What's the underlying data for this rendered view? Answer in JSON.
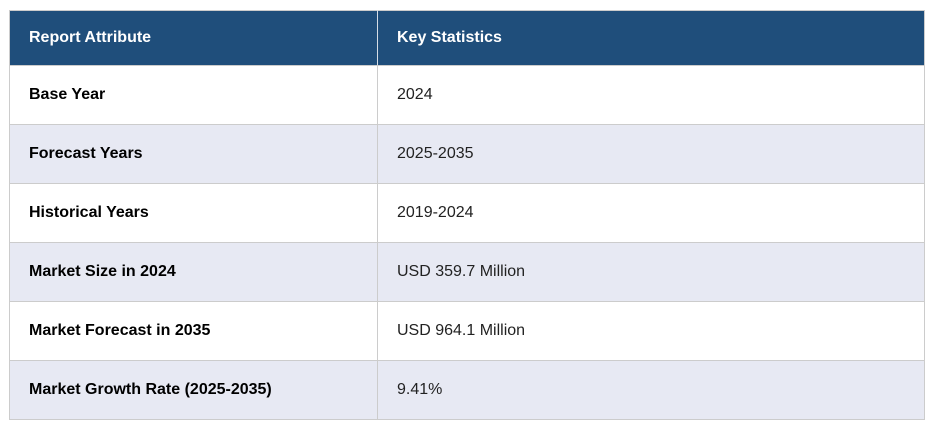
{
  "table": {
    "columns": [
      {
        "label": "Report Attribute"
      },
      {
        "label": "Key Statistics"
      }
    ],
    "rows": [
      {
        "attribute": "Base Year",
        "value": "2024"
      },
      {
        "attribute": "Forecast Years",
        "value": "2025-2035"
      },
      {
        "attribute": "Historical Years",
        "value": "2019-2024"
      },
      {
        "attribute": "Market Size in 2024",
        "value": "USD 359.7 Million"
      },
      {
        "attribute": "Market Forecast in 2035",
        "value": "USD 964.1 Million"
      },
      {
        "attribute": "Market Growth Rate (2025-2035)",
        "value": "9.41%"
      }
    ]
  },
  "colors": {
    "header_bg": "#1F4E7B",
    "header_text": "#FFFFFF",
    "row_bg": "#FFFFFF",
    "row_alt_bg": "#E7E9F3",
    "border": "#CCCCCC"
  },
  "chart_data": {
    "type": "table",
    "columns": [
      "Report Attribute",
      "Key Statistics"
    ],
    "rows": [
      [
        "Base Year",
        "2024"
      ],
      [
        "Forecast Years",
        "2025-2035"
      ],
      [
        "Historical Years",
        "2019-2024"
      ],
      [
        "Market Size in 2024",
        "USD 359.7 Million"
      ],
      [
        "Market Forecast in 2035",
        "USD 964.1 Million"
      ],
      [
        "Market Growth Rate (2025-2035)",
        "9.41%"
      ]
    ]
  }
}
